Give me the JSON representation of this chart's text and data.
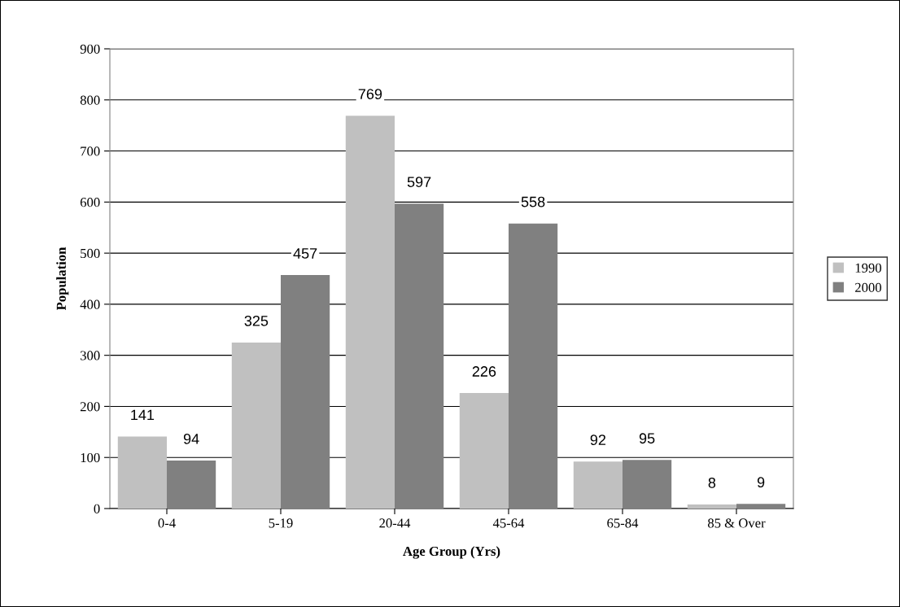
{
  "chart_data": {
    "type": "bar",
    "xlabel": "Age Group (Yrs)",
    "ylabel": "Population",
    "categories": [
      "0-4",
      "5-19",
      "20-44",
      "45-64",
      "65-84",
      "85 & Over"
    ],
    "series": [
      {
        "name": "1990",
        "color": "#c0c0c0",
        "values": [
          141,
          325,
          769,
          226,
          92,
          8
        ]
      },
      {
        "name": "2000",
        "color": "#808080",
        "values": [
          94,
          457,
          597,
          558,
          95,
          9
        ]
      }
    ],
    "ylim": [
      0,
      900
    ],
    "yticks": [
      0,
      100,
      200,
      300,
      400,
      500,
      600,
      700,
      800,
      900
    ],
    "grid": "y",
    "legend": "right",
    "data_labels": true
  }
}
